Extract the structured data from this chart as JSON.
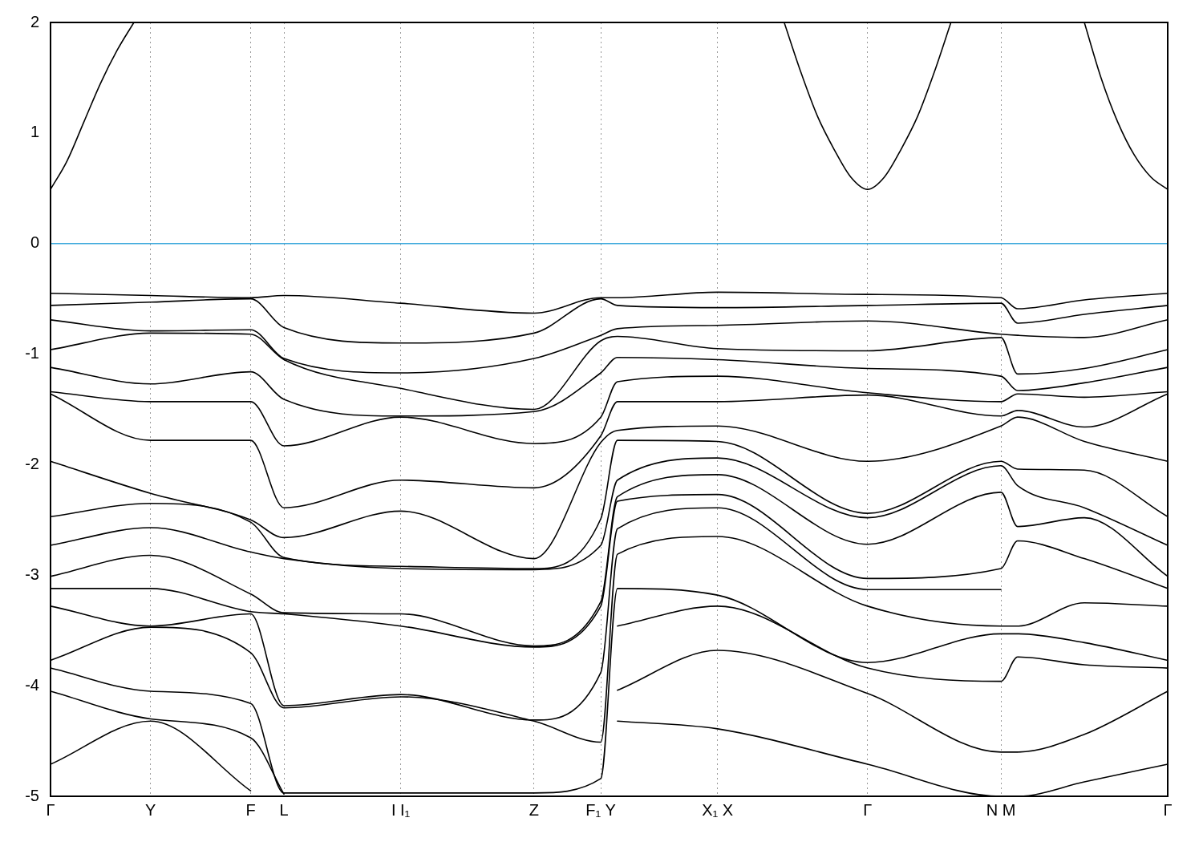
{
  "chart_data": {
    "type": "line",
    "ylim": [
      -5,
      2
    ],
    "categories": [
      "Γ",
      null,
      null,
      null,
      null,
      null,
      "Y",
      null,
      null,
      null,
      null,
      null,
      "F",
      null,
      "L",
      null,
      null,
      null,
      null,
      null,
      null,
      "I I₁",
      null,
      null,
      null,
      null,
      null,
      null,
      null,
      "Z",
      null,
      null,
      null,
      "F₁ Y",
      null,
      null,
      null,
      null,
      null,
      null,
      "X₁ X",
      null,
      null,
      null,
      null,
      null,
      null,
      null,
      null,
      "Γ",
      null,
      null,
      null,
      null,
      null,
      null,
      null,
      "N M",
      null,
      null,
      null,
      null,
      null,
      null,
      null,
      null,
      null,
      "Γ"
    ],
    "yticks": [
      -5,
      -4,
      -3,
      -2,
      -1,
      0,
      1,
      2
    ],
    "grid": "x",
    "line_style": "solid",
    "ref_lines": [
      {
        "axis": "y",
        "value": 0,
        "color": "#3fa9dc"
      }
    ],
    "series": [
      {
        "color": "#000000",
        "values": [
          0.49,
          0.75,
          1.1,
          1.45,
          1.75,
          2.0,
          null,
          null,
          null,
          null,
          null,
          null,
          null,
          null,
          null,
          null,
          null,
          null,
          null,
          null,
          null,
          null,
          null,
          null,
          null,
          null,
          null,
          null,
          null,
          null,
          null,
          null,
          null,
          null,
          null,
          null,
          null,
          null,
          null,
          null,
          null,
          null,
          null,
          null,
          null,
          null,
          null,
          null,
          null,
          null,
          null,
          null,
          null,
          null,
          null,
          null,
          null,
          null,
          null,
          null,
          null,
          null,
          null,
          null,
          null,
          null,
          null,
          null
        ]
      },
      {
        "color": "#000000",
        "values": [
          null,
          null,
          null,
          null,
          null,
          null,
          null,
          null,
          null,
          null,
          null,
          null,
          null,
          null,
          null,
          null,
          null,
          null,
          null,
          null,
          null,
          null,
          null,
          null,
          null,
          null,
          null,
          null,
          null,
          null,
          null,
          null,
          null,
          null,
          null,
          null,
          null,
          null,
          null,
          null,
          null,
          null,
          null,
          null,
          2.0,
          1.55,
          1.15,
          0.85,
          0.6,
          0.49,
          0.6,
          0.85,
          1.15,
          1.55,
          2.0,
          null,
          null,
          null,
          null,
          null,
          null,
          null,
          null,
          null,
          null,
          null,
          null,
          null
        ]
      },
      {
        "color": "#000000",
        "values": [
          null,
          null,
          null,
          null,
          null,
          null,
          null,
          null,
          null,
          null,
          null,
          null,
          null,
          null,
          null,
          null,
          null,
          null,
          null,
          null,
          null,
          null,
          null,
          null,
          null,
          null,
          null,
          null,
          null,
          null,
          null,
          null,
          null,
          null,
          null,
          null,
          null,
          null,
          null,
          null,
          null,
          null,
          null,
          null,
          null,
          null,
          null,
          null,
          null,
          null,
          null,
          null,
          null,
          null,
          null,
          null,
          null,
          null,
          null,
          null,
          null,
          null,
          2.0,
          1.5,
          1.1,
          0.8,
          0.6,
          0.49
        ]
      },
      {
        "color": "#000000",
        "values": [
          -0.45,
          null,
          null,
          null,
          null,
          null,
          -0.47,
          null,
          null,
          null,
          null,
          null,
          -0.49,
          null,
          -0.47,
          null,
          null,
          null,
          null,
          null,
          null,
          -0.54,
          null,
          null,
          null,
          null,
          null,
          null,
          null,
          -0.63,
          null,
          null,
          null,
          -0.49,
          -0.49,
          null,
          null,
          null,
          null,
          null,
          -0.44,
          null,
          null,
          null,
          null,
          null,
          null,
          null,
          null,
          -0.46,
          null,
          null,
          null,
          null,
          null,
          null,
          null,
          -0.49,
          -0.59,
          null,
          null,
          null,
          -0.51,
          null,
          null,
          null,
          null,
          -0.45
        ]
      },
      {
        "color": "#000000",
        "values": [
          -0.56,
          null,
          null,
          null,
          null,
          null,
          -0.53,
          null,
          null,
          null,
          null,
          null,
          -0.5,
          null,
          -0.76,
          null,
          null,
          null,
          null,
          null,
          null,
          -0.9,
          null,
          null,
          null,
          null,
          null,
          null,
          null,
          -0.81,
          null,
          null,
          null,
          -0.5,
          -0.56,
          null,
          null,
          null,
          null,
          null,
          -0.58,
          null,
          null,
          null,
          null,
          null,
          null,
          null,
          null,
          -0.56,
          null,
          null,
          null,
          null,
          null,
          null,
          null,
          -0.54,
          -0.72,
          null,
          null,
          null,
          -0.64,
          null,
          null,
          null,
          null,
          -0.56
        ]
      },
      {
        "color": "#000000",
        "values": [
          -0.69,
          null,
          null,
          null,
          null,
          null,
          -0.79,
          null,
          null,
          null,
          null,
          null,
          -0.78,
          null,
          -1.04,
          null,
          null,
          null,
          null,
          null,
          null,
          -1.17,
          null,
          null,
          null,
          null,
          null,
          null,
          null,
          -1.04,
          null,
          null,
          null,
          -0.83,
          -0.77,
          null,
          null,
          null,
          null,
          null,
          -0.74,
          null,
          null,
          null,
          null,
          null,
          null,
          null,
          null,
          -0.7,
          null,
          null,
          null,
          null,
          null,
          null,
          null,
          -0.82,
          -0.83,
          null,
          null,
          null,
          -0.85,
          null,
          null,
          null,
          null,
          -0.69
        ]
      },
      {
        "color": "#000000",
        "values": [
          -0.96,
          null,
          null,
          null,
          null,
          null,
          -0.81,
          null,
          null,
          null,
          null,
          null,
          -0.82,
          null,
          -1.05,
          null,
          null,
          null,
          null,
          null,
          null,
          -1.31,
          null,
          null,
          null,
          null,
          null,
          null,
          null,
          -1.5,
          null,
          null,
          null,
          -0.88,
          -0.84,
          null,
          null,
          null,
          null,
          null,
          -0.95,
          null,
          null,
          null,
          null,
          null,
          null,
          null,
          null,
          -0.97,
          null,
          null,
          null,
          null,
          null,
          null,
          null,
          -0.85,
          -1.18,
          null,
          null,
          null,
          -1.13,
          null,
          null,
          null,
          null,
          -0.96
        ]
      },
      {
        "color": "#000000",
        "values": [
          -1.12,
          null,
          null,
          null,
          null,
          null,
          -1.27,
          null,
          null,
          null,
          null,
          null,
          -1.16,
          null,
          -1.41,
          null,
          null,
          null,
          null,
          null,
          null,
          -1.56,
          null,
          null,
          null,
          null,
          null,
          null,
          null,
          -1.52,
          null,
          null,
          null,
          -1.17,
          -1.03,
          null,
          null,
          null,
          null,
          null,
          -1.05,
          null,
          null,
          null,
          null,
          null,
          null,
          null,
          null,
          -1.13,
          null,
          null,
          null,
          null,
          null,
          null,
          null,
          -1.2,
          -1.33,
          null,
          null,
          null,
          -1.26,
          null,
          null,
          null,
          null,
          -1.12
        ]
      },
      {
        "color": "#000000",
        "values": [
          -1.34,
          null,
          null,
          null,
          null,
          null,
          -1.43,
          null,
          null,
          null,
          null,
          null,
          -1.43,
          null,
          -1.83,
          null,
          null,
          null,
          null,
          null,
          null,
          -1.57,
          null,
          null,
          null,
          null,
          null,
          null,
          null,
          -1.81,
          null,
          null,
          null,
          -1.57,
          -1.25,
          null,
          null,
          null,
          null,
          null,
          -1.2,
          null,
          null,
          null,
          null,
          null,
          null,
          null,
          null,
          -1.35,
          null,
          null,
          null,
          null,
          null,
          null,
          null,
          -1.43,
          -1.36,
          null,
          null,
          null,
          -1.39,
          null,
          null,
          null,
          null,
          -1.34
        ]
      },
      {
        "color": "#000000",
        "values": [
          -1.36,
          null,
          null,
          null,
          null,
          null,
          -1.78,
          null,
          null,
          null,
          null,
          null,
          -1.78,
          null,
          -2.39,
          null,
          null,
          null,
          null,
          null,
          null,
          -2.14,
          null,
          null,
          null,
          null,
          null,
          null,
          null,
          -2.21,
          null,
          null,
          null,
          -1.74,
          -1.43,
          null,
          null,
          null,
          null,
          null,
          -1.43,
          null,
          null,
          null,
          null,
          null,
          null,
          null,
          null,
          -1.37,
          null,
          null,
          null,
          null,
          null,
          null,
          null,
          -1.56,
          -1.51,
          null,
          null,
          null,
          -1.66,
          null,
          null,
          null,
          null,
          -1.36
        ]
      },
      {
        "color": "#000000",
        "values": [
          -1.97,
          null,
          null,
          null,
          null,
          null,
          -2.26,
          null,
          null,
          null,
          null,
          null,
          -2.5,
          null,
          -2.66,
          null,
          null,
          null,
          null,
          null,
          null,
          -2.42,
          null,
          null,
          null,
          null,
          null,
          null,
          null,
          -2.85,
          null,
          null,
          null,
          -1.8,
          -1.69,
          null,
          null,
          null,
          null,
          null,
          -1.65,
          null,
          null,
          null,
          null,
          null,
          null,
          null,
          null,
          -1.97,
          null,
          null,
          null,
          null,
          null,
          null,
          null,
          -1.65,
          -1.57,
          null,
          null,
          null,
          -1.79,
          null,
          null,
          null,
          null,
          -1.97
        ]
      },
      {
        "color": "#000000",
        "values": [
          -2.47,
          null,
          null,
          null,
          null,
          null,
          -2.35,
          null,
          null,
          null,
          null,
          null,
          -2.52,
          null,
          -2.84,
          null,
          null,
          null,
          null,
          null,
          null,
          -2.92,
          null,
          null,
          null,
          null,
          null,
          null,
          null,
          -2.94,
          null,
          null,
          null,
          -2.49,
          -1.78,
          null,
          null,
          null,
          null,
          null,
          -1.79,
          null,
          null,
          null,
          null,
          null,
          null,
          null,
          null,
          -2.44,
          null,
          null,
          null,
          null,
          null,
          null,
          null,
          -1.97,
          -2.04,
          null,
          null,
          null,
          -2.05,
          null,
          null,
          null,
          null,
          -2.47
        ]
      },
      {
        "color": "#000000",
        "values": [
          -2.73,
          null,
          null,
          null,
          null,
          null,
          -2.57,
          null,
          null,
          null,
          null,
          null,
          -2.79,
          null,
          -2.85,
          null,
          null,
          null,
          null,
          null,
          null,
          -2.94,
          null,
          null,
          null,
          null,
          null,
          null,
          null,
          -2.95,
          null,
          null,
          null,
          -2.73,
          -2.14,
          null,
          null,
          null,
          null,
          null,
          -1.94,
          null,
          null,
          null,
          null,
          null,
          null,
          null,
          null,
          -2.48,
          null,
          null,
          null,
          null,
          null,
          null,
          null,
          -2.01,
          -2.19,
          null,
          null,
          null,
          -2.39,
          null,
          null,
          null,
          null,
          -2.73
        ]
      },
      {
        "color": "#000000",
        "values": [
          -3.01,
          null,
          null,
          null,
          null,
          null,
          -2.82,
          null,
          null,
          null,
          null,
          null,
          -3.17,
          null,
          -3.34,
          null,
          null,
          null,
          null,
          null,
          null,
          -3.35,
          null,
          null,
          null,
          null,
          null,
          null,
          null,
          -3.64,
          null,
          null,
          null,
          -3.24,
          -2.29,
          null,
          null,
          null,
          null,
          null,
          -2.09,
          null,
          null,
          null,
          null,
          null,
          null,
          null,
          null,
          -2.72,
          null,
          null,
          null,
          null,
          null,
          null,
          null,
          -2.25,
          -2.56,
          null,
          null,
          null,
          -2.48,
          null,
          null,
          null,
          null,
          -3.01
        ]
      },
      {
        "color": "#000000",
        "values": [
          -3.12,
          null,
          null,
          null,
          null,
          null,
          -3.12,
          null,
          null,
          null,
          null,
          null,
          -3.33,
          null,
          -3.35,
          null,
          null,
          null,
          null,
          null,
          null,
          -3.46,
          null,
          null,
          null,
          null,
          null,
          null,
          null,
          -3.65,
          null,
          null,
          null,
          -3.28,
          -2.33,
          null,
          null,
          null,
          null,
          null,
          -2.27,
          null,
          null,
          null,
          null,
          null,
          null,
          null,
          null,
          -3.03,
          null,
          null,
          null,
          null,
          null,
          null,
          null,
          -2.94,
          -2.69,
          null,
          null,
          null,
          -2.85,
          null,
          null,
          null,
          null,
          -3.12
        ]
      },
      {
        "color": "#000000",
        "values": [
          -3.28,
          null,
          null,
          null,
          null,
          null,
          -3.46,
          null,
          null,
          null,
          null,
          null,
          -3.35,
          null,
          -4.18,
          null,
          null,
          null,
          null,
          null,
          null,
          -4.08,
          null,
          null,
          null,
          null,
          null,
          null,
          null,
          -4.31,
          null,
          null,
          null,
          -3.88,
          -2.58,
          null,
          null,
          null,
          null,
          null,
          -2.39,
          null,
          null,
          null,
          null,
          null,
          null,
          null,
          null,
          -3.13,
          null,
          null,
          null,
          null,
          null,
          null,
          null,
          -3.13,
          null,
          null,
          null,
          null,
          null,
          null,
          null,
          null,
          null,
          null
        ]
      },
      {
        "color": "#000000",
        "values": [
          -3.77,
          null,
          null,
          null,
          null,
          null,
          -3.47,
          null,
          null,
          null,
          null,
          null,
          -3.7,
          null,
          -4.2,
          null,
          null,
          null,
          null,
          null,
          null,
          -4.1,
          null,
          null,
          null,
          null,
          null,
          null,
          null,
          -4.32,
          null,
          null,
          null,
          -4.51,
          -2.81,
          null,
          null,
          null,
          null,
          null,
          -2.65,
          null,
          null,
          null,
          null,
          null,
          null,
          null,
          null,
          -3.28,
          null,
          null,
          null,
          null,
          null,
          null,
          null,
          -3.46,
          -3.46,
          null,
          null,
          null,
          -3.25,
          null,
          null,
          null,
          null,
          -3.28
        ]
      },
      {
        "color": "#000000",
        "values": [
          -3.84,
          null,
          null,
          null,
          null,
          null,
          -4.05,
          null,
          null,
          null,
          null,
          null,
          -4.16,
          null,
          -4.97,
          null,
          null,
          null,
          null,
          null,
          null,
          null,
          null,
          null,
          null,
          null,
          null,
          null,
          null,
          -4.97,
          null,
          null,
          null,
          -4.84,
          -3.12,
          null,
          null,
          null,
          null,
          null,
          -3.18,
          null,
          null,
          null,
          null,
          null,
          null,
          null,
          null,
          -3.79,
          null,
          null,
          null,
          null,
          null,
          null,
          null,
          -3.53,
          -3.53,
          null,
          null,
          null,
          -3.61,
          null,
          null,
          null,
          null,
          -3.77
        ]
      },
      {
        "color": "#000000",
        "values": [
          null,
          null,
          null,
          null,
          null,
          null,
          null,
          null,
          null,
          null,
          null,
          null,
          null,
          null,
          null,
          null,
          null,
          null,
          null,
          null,
          null,
          null,
          null,
          null,
          null,
          null,
          null,
          null,
          null,
          null,
          null,
          null,
          null,
          null,
          -3.46,
          null,
          null,
          null,
          null,
          null,
          -3.28,
          null,
          null,
          null,
          null,
          null,
          null,
          null,
          null,
          -3.84,
          null,
          null,
          null,
          null,
          null,
          null,
          null,
          -3.96,
          -3.74,
          null,
          null,
          null,
          -3.81,
          null,
          null,
          null,
          null,
          -3.84
        ]
      },
      {
        "color": "#000000",
        "values": [
          null,
          null,
          null,
          null,
          null,
          null,
          null,
          null,
          null,
          null,
          null,
          null,
          null,
          null,
          null,
          null,
          null,
          null,
          null,
          null,
          null,
          null,
          null,
          null,
          null,
          null,
          null,
          null,
          null,
          null,
          null,
          null,
          null,
          null,
          -4.04,
          null,
          null,
          null,
          null,
          null,
          -3.68,
          null,
          null,
          null,
          null,
          null,
          null,
          null,
          null,
          -4.07,
          null,
          null,
          null,
          null,
          null,
          null,
          null,
          -4.6,
          -4.6,
          null,
          null,
          null,
          -4.44,
          null,
          null,
          null,
          null,
          -4.05
        ]
      },
      {
        "color": "#000000",
        "values": [
          null,
          null,
          null,
          null,
          null,
          null,
          null,
          null,
          null,
          null,
          null,
          null,
          null,
          null,
          null,
          null,
          null,
          null,
          null,
          null,
          null,
          null,
          null,
          null,
          null,
          null,
          null,
          null,
          null,
          null,
          null,
          null,
          null,
          null,
          -4.32,
          null,
          null,
          null,
          null,
          null,
          -4.39,
          null,
          null,
          null,
          null,
          null,
          null,
          null,
          null,
          -4.71,
          null,
          null,
          null,
          null,
          null,
          null,
          null,
          -5.0,
          -5.0,
          null,
          null,
          null,
          -4.87,
          null,
          null,
          null,
          null,
          -4.71
        ]
      },
      {
        "color": "#000000",
        "values": [
          -4.05,
          null,
          null,
          null,
          null,
          null,
          -4.3,
          null,
          null,
          null,
          null,
          null,
          -4.47,
          null,
          -4.98,
          null,
          null,
          null,
          null,
          null,
          null,
          null,
          null,
          null,
          null,
          null,
          null,
          null,
          null,
          null,
          null,
          null,
          null,
          null,
          null,
          null,
          null,
          null,
          null,
          null,
          null,
          null,
          null,
          null,
          null,
          null,
          null,
          null,
          null,
          null,
          null,
          null,
          null,
          null,
          null,
          null,
          null,
          null,
          null,
          null,
          null,
          null,
          null,
          null,
          null,
          null,
          null,
          null
        ]
      },
      {
        "color": "#000000",
        "values": [
          -4.71,
          null,
          null,
          null,
          null,
          null,
          -4.32,
          null,
          null,
          null,
          null,
          null,
          -4.95,
          null,
          null,
          null,
          null,
          null,
          null,
          null,
          null,
          null,
          null,
          null,
          null,
          null,
          null,
          null,
          null,
          null,
          null,
          null,
          null,
          null,
          null,
          null,
          null,
          null,
          null,
          null,
          null,
          null,
          null,
          null,
          null,
          null,
          null,
          null,
          null,
          null,
          null,
          null,
          null,
          null,
          null,
          null,
          null,
          null,
          null,
          null,
          null,
          null,
          null,
          null,
          null,
          null,
          null,
          null
        ]
      }
    ]
  }
}
